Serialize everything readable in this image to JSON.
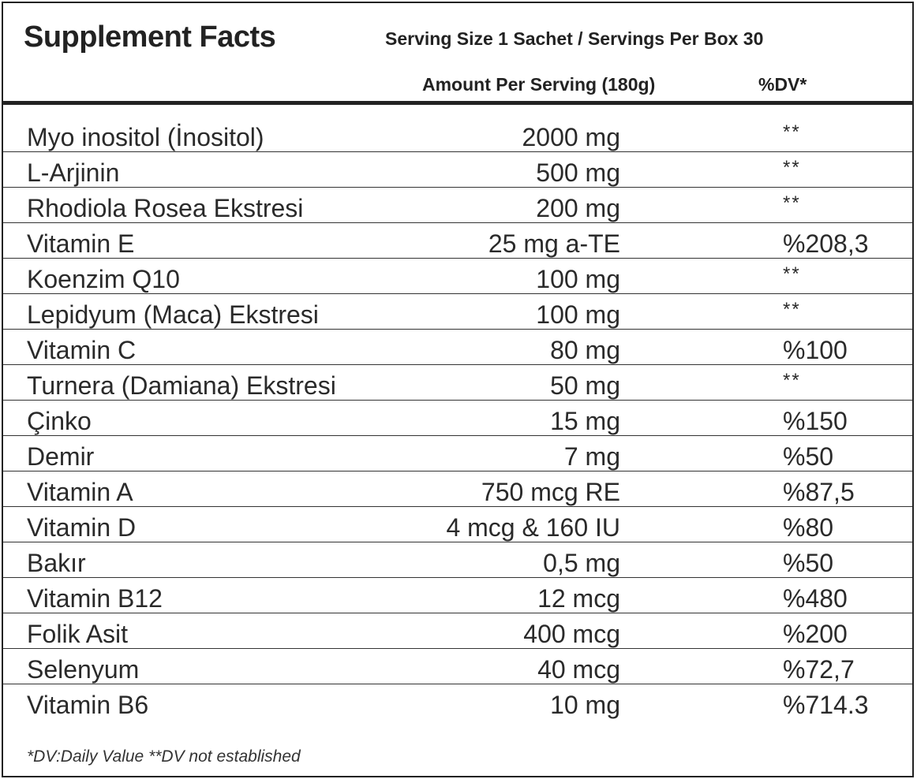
{
  "header": {
    "title": "Supplement Facts",
    "serving": "Serving Size 1 Sachet / Servings Per Box 30",
    "amount_col": "Amount Per Serving (180g)",
    "dv_col": "%DV*"
  },
  "rows": [
    {
      "name": "Myo inositol (İnositol)",
      "amount": "2000 mg",
      "dv": "**"
    },
    {
      "name": "L-Arjinin",
      "amount": "500 mg",
      "dv": "**"
    },
    {
      "name": "Rhodiola Rosea Ekstresi",
      "amount": "200 mg",
      "dv": "**"
    },
    {
      "name": "Vitamin E",
      "amount": "25 mg a-TE",
      "dv": "%208,3"
    },
    {
      "name": "Koenzim Q10",
      "amount": "100 mg",
      "dv": "**"
    },
    {
      "name": "Lepidyum (Maca) Ekstresi",
      "amount": "100 mg",
      "dv": "**"
    },
    {
      "name": "Vitamin C",
      "amount": "80 mg",
      "dv": "%100"
    },
    {
      "name": "Turnera (Damiana) Ekstresi",
      "amount": "50 mg",
      "dv": "**"
    },
    {
      "name": "Çinko",
      "amount": "15 mg",
      "dv": "%150"
    },
    {
      "name": "Demir",
      "amount": "7 mg",
      "dv": "%50"
    },
    {
      "name": "Vitamin A",
      "amount": "750 mcg RE",
      "dv": "%87,5"
    },
    {
      "name": "Vitamin D",
      "amount": "4 mcg & 160 IU",
      "dv": "%80"
    },
    {
      "name": "Bakır",
      "amount": "0,5 mg",
      "dv": "%50"
    },
    {
      "name": "Vitamin B12",
      "amount": "12 mcg",
      "dv": "%480"
    },
    {
      "name": "Folik Asit",
      "amount": "400 mcg",
      "dv": "%200"
    },
    {
      "name": "Selenyum",
      "amount": "40 mcg",
      "dv": "%72,7"
    },
    {
      "name": "Vitamin B6",
      "amount": "10 mg",
      "dv": "%714.3"
    }
  ],
  "footnote": "*DV:Daily Value **DV not established"
}
